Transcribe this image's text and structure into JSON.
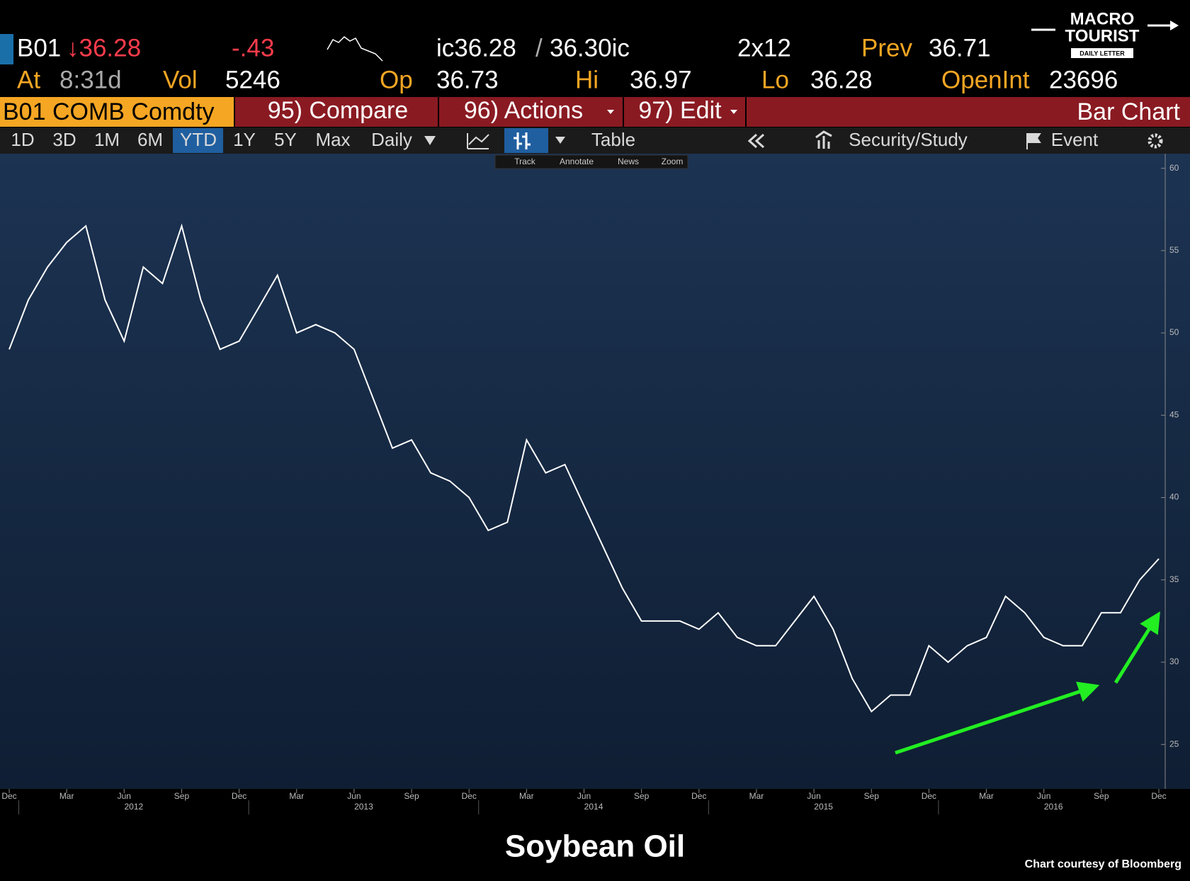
{
  "header": {
    "ticker": "B01",
    "last": "↓36.28",
    "change": "-.43",
    "bid": "ic36.28",
    "slash": "/",
    "ask": "36.30ic",
    "size": "2x12",
    "prev_label": "Prev",
    "prev": "36.71",
    "time_label": "At",
    "time": "8:31d",
    "vol_label": "Vol",
    "vol": "5246",
    "open_label": "Op",
    "open": "36.73",
    "high_label": "Hi",
    "high": "36.97",
    "low_label": "Lo",
    "low": "36.28",
    "oi_label": "OpenInt",
    "oi": "23696"
  },
  "logo": {
    "line1": "MACRO",
    "line2": "TOURIST",
    "line3": "DAILY LETTER"
  },
  "function_bar": {
    "security": "B01 COMB Comdty",
    "compare": "95) Compare",
    "actions": "96) Actions",
    "edit": "97) Edit",
    "view": "Bar Chart"
  },
  "toolbar": {
    "periods": [
      "1D",
      "3D",
      "1M",
      "6M",
      "YTD",
      "1Y",
      "5Y",
      "Max"
    ],
    "frequency": "Daily",
    "table": "Table",
    "study": "Security/Study",
    "event": "Event"
  },
  "subtools": [
    "Track",
    "Annotate",
    "News",
    "Zoom"
  ],
  "chart_data": {
    "type": "line",
    "title": "Soybean Oil",
    "credit": "Chart courtesy of Bloomberg",
    "categories": [
      "Dec",
      null,
      null,
      "Mar",
      null,
      null,
      "Jun",
      null,
      null,
      "Sep",
      null,
      null,
      "Dec",
      null,
      null,
      "Mar",
      null,
      null,
      "Jun",
      null,
      null,
      "Sep",
      null,
      null,
      "Dec",
      null,
      null,
      "Mar",
      null,
      null,
      "Jun",
      null,
      null,
      "Sep",
      null,
      null,
      "Dec",
      null,
      null,
      "Mar",
      null,
      null,
      "Jun",
      null,
      null,
      "Sep",
      null,
      null,
      "Dec",
      null,
      null,
      "Mar",
      null,
      null,
      "Jun",
      null,
      null,
      "Sep",
      null,
      null,
      "Dec"
    ],
    "years": [
      "2012",
      "2013",
      "2014",
      "2015",
      "2016"
    ],
    "series": [
      {
        "name": "B01 COMB Comdty",
        "color": "#ffffff",
        "values": [
          49,
          52,
          54,
          55.5,
          56.5,
          52,
          49.5,
          54,
          53,
          56.5,
          52,
          49,
          49.5,
          51.5,
          53.5,
          50,
          50.5,
          50,
          49,
          46,
          43,
          43.5,
          41.5,
          41,
          40,
          38,
          38.5,
          43.5,
          41.5,
          42,
          39.5,
          37,
          34.5,
          32.5,
          32.5,
          32.5,
          32,
          33,
          31.5,
          31,
          31,
          32.5,
          34,
          32,
          29,
          27,
          28,
          28,
          31,
          30,
          31,
          31.5,
          34,
          33,
          31.5,
          31,
          31,
          33,
          33,
          35,
          36.28
        ]
      }
    ],
    "ylim": [
      22.3,
      60.8
    ],
    "yticks": [
      25,
      30,
      35,
      40,
      45,
      50,
      55,
      60
    ],
    "grid": false
  }
}
